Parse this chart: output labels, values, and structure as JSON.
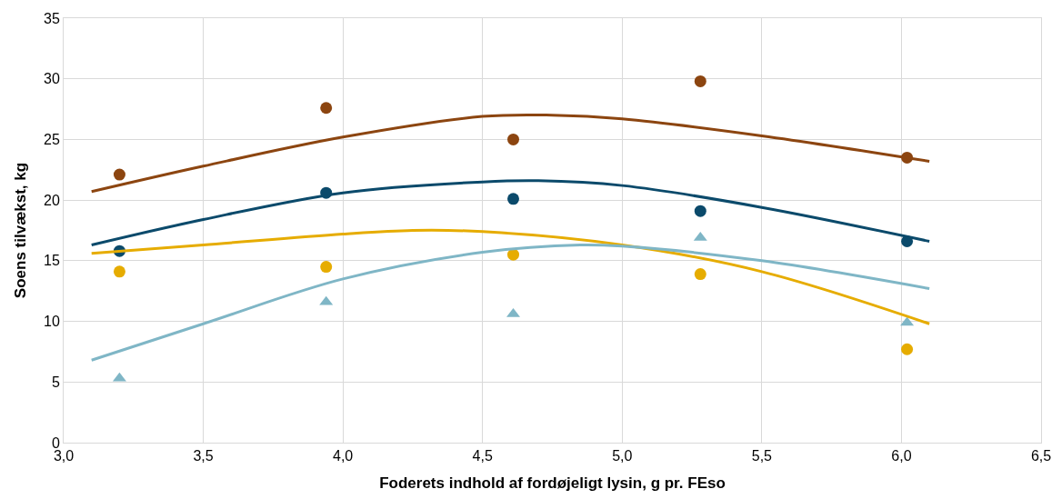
{
  "chart_data": {
    "type": "scatter",
    "xlabel": "Foderets indhold af fordøjeligt lysin, g pr. FEso",
    "ylabel": "Soens tilvækst, kg",
    "xlim": [
      3.0,
      6.5
    ],
    "ylim": [
      0,
      35
    ],
    "xticks": [
      {
        "value": 3.0,
        "label": "3,0"
      },
      {
        "value": 3.5,
        "label": "3,5"
      },
      {
        "value": 4.0,
        "label": "4,0"
      },
      {
        "value": 4.5,
        "label": "4,5"
      },
      {
        "value": 5.0,
        "label": "5,0"
      },
      {
        "value": 5.5,
        "label": "5,5"
      },
      {
        "value": 6.0,
        "label": "6,0"
      },
      {
        "value": 6.5,
        "label": "6,5"
      }
    ],
    "yticks": [
      0,
      5,
      10,
      15,
      20,
      25,
      30,
      35
    ],
    "grid": true,
    "series": [
      {
        "type": "scatter",
        "marker": "circle",
        "color": "#8c4510",
        "x": [
          3.2,
          3.94,
          4.61,
          5.28,
          6.02
        ],
        "values": [
          22.1,
          27.6,
          25.0,
          29.8,
          23.5
        ]
      },
      {
        "type": "scatter",
        "marker": "circle",
        "color": "#0b4a6b",
        "x": [
          3.2,
          3.94,
          4.61,
          5.28,
          6.02
        ],
        "values": [
          15.8,
          20.6,
          20.1,
          19.1,
          16.6
        ]
      },
      {
        "type": "scatter",
        "marker": "circle",
        "color": "#e6ac00",
        "x": [
          3.2,
          3.94,
          4.61,
          5.28,
          6.02
        ],
        "values": [
          14.1,
          14.5,
          15.5,
          13.9,
          7.7
        ]
      },
      {
        "type": "scatter",
        "marker": "triangle",
        "color": "#7fb6c6",
        "x": [
          3.2,
          3.94,
          4.61,
          5.28,
          6.02
        ],
        "values": [
          5.3,
          11.6,
          10.6,
          16.9,
          9.9
        ]
      },
      {
        "type": "line",
        "marker": "none",
        "color": "#8c4510",
        "x": [
          3.1,
          3.5,
          4.0,
          4.5,
          4.75,
          5.0,
          5.5,
          6.1
        ],
        "values": [
          20.7,
          22.8,
          25.2,
          26.9,
          27.0,
          26.7,
          25.3,
          23.2
        ]
      },
      {
        "type": "line",
        "marker": "none",
        "color": "#0b4a6b",
        "x": [
          3.1,
          3.5,
          4.0,
          4.5,
          4.7,
          5.0,
          5.5,
          6.1
        ],
        "values": [
          16.3,
          18.4,
          20.6,
          21.5,
          21.6,
          21.2,
          19.4,
          16.6
        ]
      },
      {
        "type": "line",
        "marker": "none",
        "color": "#e6ac00",
        "x": [
          3.1,
          3.5,
          4.0,
          4.25,
          4.5,
          5.0,
          5.5,
          6.1
        ],
        "values": [
          15.6,
          16.3,
          17.2,
          17.5,
          17.4,
          16.3,
          14.1,
          9.8
        ]
      },
      {
        "type": "line",
        "marker": "none",
        "color": "#7fb6c6",
        "x": [
          3.1,
          3.5,
          4.0,
          4.5,
          4.85,
          5.0,
          5.5,
          6.1
        ],
        "values": [
          6.8,
          9.8,
          13.5,
          15.7,
          16.3,
          16.2,
          15.0,
          12.7
        ]
      }
    ]
  }
}
